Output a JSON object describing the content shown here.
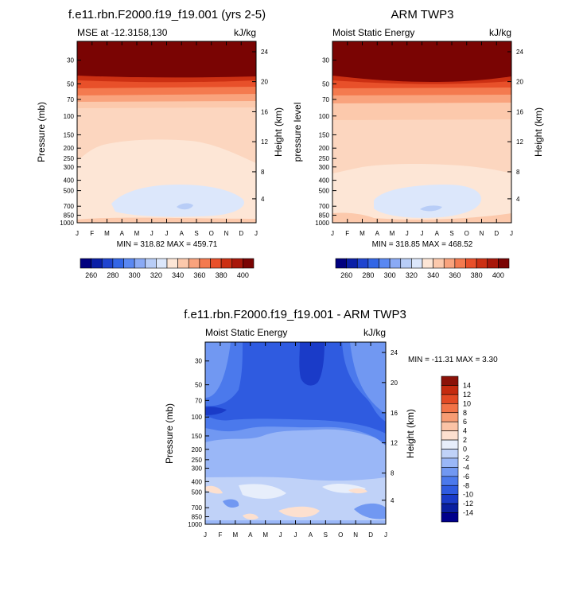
{
  "colors": {
    "mse_palette": [
      "#00007f",
      "#0a1fa6",
      "#1f44cf",
      "#3366e6",
      "#5a88f2",
      "#8aaaf5",
      "#b8cdf7",
      "#dce7fb",
      "#fde6d6",
      "#fcc9ac",
      "#f9a37d",
      "#f47a4f",
      "#e8502a",
      "#cc3013",
      "#a8170a",
      "#7a0403"
    ],
    "diff_palette": [
      "#00008b",
      "#0a1fa0",
      "#1a3bc8",
      "#2f5be0",
      "#4b79ec",
      "#7198f2",
      "#9ab7f7",
      "#c0d2f8",
      "#e7eefb",
      "#fde0cf",
      "#fbc3a6",
      "#f79c73",
      "#f27347",
      "#e24a24",
      "#c42b0f",
      "#8b1208"
    ]
  },
  "chart_data": [
    {
      "id": "model",
      "type": "heatmap",
      "title": "f.e11.rbn.F2000.f19_f19.001 (yrs 2-5)",
      "subtitle_left": "MSE at -12.3158,130",
      "subtitle_right": "kJ/kg",
      "ylabel": "Pressure (mb)",
      "ylabel_right": "Height (km)",
      "x_ticks": [
        "J",
        "F",
        "M",
        "A",
        "M",
        "J",
        "J",
        "A",
        "S",
        "O",
        "N",
        "D",
        "J"
      ],
      "y_ticks": [
        "30",
        "50",
        "70",
        "100",
        "150",
        "200",
        "250",
        "300",
        "400",
        "500",
        "700",
        "850",
        "1000"
      ],
      "y_ticks_right": [
        "24",
        "20",
        "16",
        "12",
        "8",
        "4"
      ],
      "ylim": [
        1000,
        20
      ],
      "stats": "MIN = 318.82 MAX = 459.71",
      "levels": [
        260,
        270,
        280,
        290,
        300,
        310,
        320,
        330,
        340,
        350,
        360,
        370,
        380,
        390,
        400,
        410
      ],
      "colorbar_labels": [
        "260",
        "280",
        "300",
        "320",
        "340",
        "360",
        "380",
        "400"
      ]
    },
    {
      "id": "obs",
      "type": "heatmap",
      "title": "ARM TWP3",
      "subtitle_left": "Moist Static Energy",
      "subtitle_right": "kJ/kg",
      "ylabel": "pressure level",
      "ylabel_right": "Height (km)",
      "x_ticks": [
        "J",
        "F",
        "M",
        "A",
        "M",
        "J",
        "J",
        "A",
        "S",
        "O",
        "N",
        "D",
        "J"
      ],
      "y_ticks": [
        "30",
        "50",
        "70",
        "100",
        "150",
        "200",
        "250",
        "300",
        "400",
        "500",
        "700",
        "850",
        "1000"
      ],
      "y_ticks_right": [
        "24",
        "20",
        "16",
        "12",
        "8",
        "4"
      ],
      "ylim": [
        1000,
        20
      ],
      "stats": "MIN = 318.85 MAX = 468.52",
      "levels": [
        260,
        270,
        280,
        290,
        300,
        310,
        320,
        330,
        340,
        350,
        360,
        370,
        380,
        390,
        400,
        410
      ],
      "colorbar_labels": [
        "260",
        "280",
        "300",
        "320",
        "340",
        "360",
        "380",
        "400"
      ]
    },
    {
      "id": "diff",
      "type": "heatmap",
      "title": "f.e11.rbn.F2000.f19_f19.001 - ARM TWP3",
      "subtitle_left": "Moist Static Energy",
      "subtitle_right": "kJ/kg",
      "ylabel": "Pressure (mb)",
      "ylabel_right": "Height (km)",
      "x_ticks": [
        "J",
        "F",
        "M",
        "A",
        "M",
        "J",
        "J",
        "A",
        "S",
        "O",
        "N",
        "D",
        "J"
      ],
      "y_ticks": [
        "30",
        "50",
        "70",
        "100",
        "150",
        "200",
        "250",
        "300",
        "400",
        "500",
        "700",
        "850",
        "1000"
      ],
      "y_ticks_right": [
        "24",
        "20",
        "16",
        "12",
        "8",
        "4"
      ],
      "ylim": [
        1000,
        20
      ],
      "stats": "MIN = -11.31 MAX =  3.30",
      "levels": [
        -14,
        -12,
        -10,
        -8,
        -6,
        -4,
        -2,
        0,
        2,
        4,
        6,
        8,
        10,
        12,
        14
      ],
      "colorbar_labels": [
        "14",
        "12",
        "10",
        "8",
        "6",
        "4",
        "2",
        "0",
        "-2",
        "-4",
        "-6",
        "-8",
        "-10",
        "-12",
        "-14"
      ]
    }
  ]
}
